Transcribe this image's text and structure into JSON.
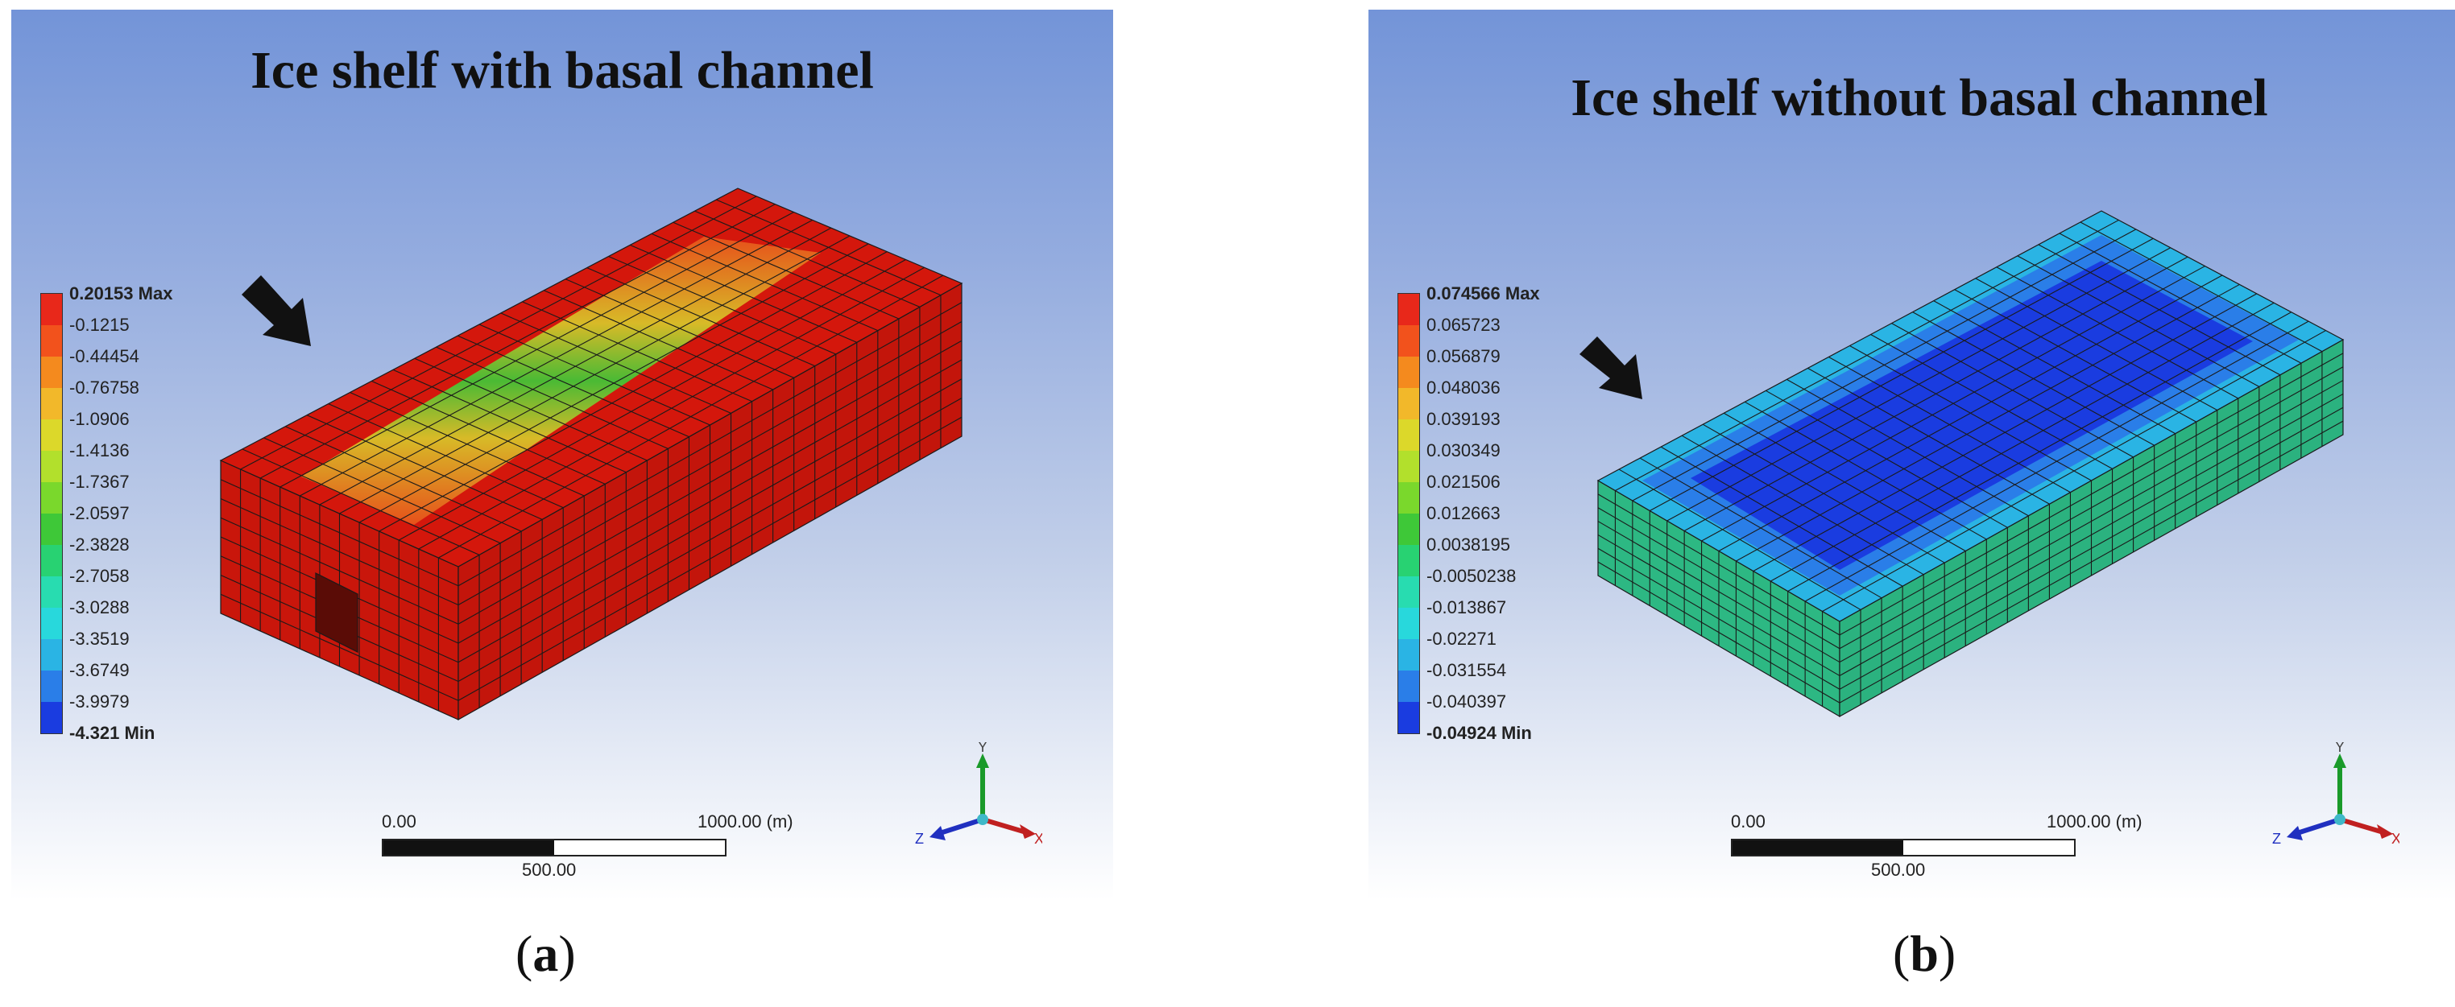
{
  "panels": [
    {
      "id": "a",
      "title": "Ice shelf with basal channel",
      "caption_letter": "a",
      "legend": {
        "labels": [
          "0.20153 Max",
          "-0.1215",
          "-0.44454",
          "-0.76758",
          "-1.0906",
          "-1.4136",
          "-1.7367",
          "-2.0597",
          "-2.3828",
          "-2.7058",
          "-3.0288",
          "-3.3519",
          "-3.6749",
          "-3.9979",
          "-4.321 Min"
        ],
        "colors": [
          "#e8281a",
          "#f2521c",
          "#f48a1e",
          "#f2b82a",
          "#dcd82a",
          "#b2e02c",
          "#7ad82c",
          "#3ec838",
          "#28d272",
          "#28dcb0",
          "#28d8dc",
          "#2ab4e4",
          "#2a7ee8",
          "#1a3ce0"
        ]
      },
      "scalebar": {
        "start": "0.00",
        "end": "1000.00 (m)",
        "mid": "500.00"
      },
      "model_color": "#d4170c"
    },
    {
      "id": "b",
      "title": "Ice shelf without basal channel",
      "caption_letter": "b",
      "legend": {
        "labels": [
          "0.074566 Max",
          "0.065723",
          "0.056879",
          "0.048036",
          "0.039193",
          "0.030349",
          "0.021506",
          "0.012663",
          "0.0038195",
          "-0.0050238",
          "-0.013867",
          "-0.02271",
          "-0.031554",
          "-0.040397",
          "-0.04924 Min"
        ],
        "colors": [
          "#e8281a",
          "#f2521c",
          "#f48a1e",
          "#f2b82a",
          "#dcd82a",
          "#b2e02c",
          "#7ad82c",
          "#3ec838",
          "#28d272",
          "#28dcb0",
          "#28d8dc",
          "#2ab4e4",
          "#2a7ee8",
          "#1a3ce0"
        ]
      },
      "scalebar": {
        "start": "0.00",
        "end": "1000.00 (m)",
        "mid": "500.00"
      },
      "model_color": "#2fc28a"
    }
  ],
  "triad_labels": {
    "y": "Y",
    "x": "X",
    "z": "Z"
  }
}
